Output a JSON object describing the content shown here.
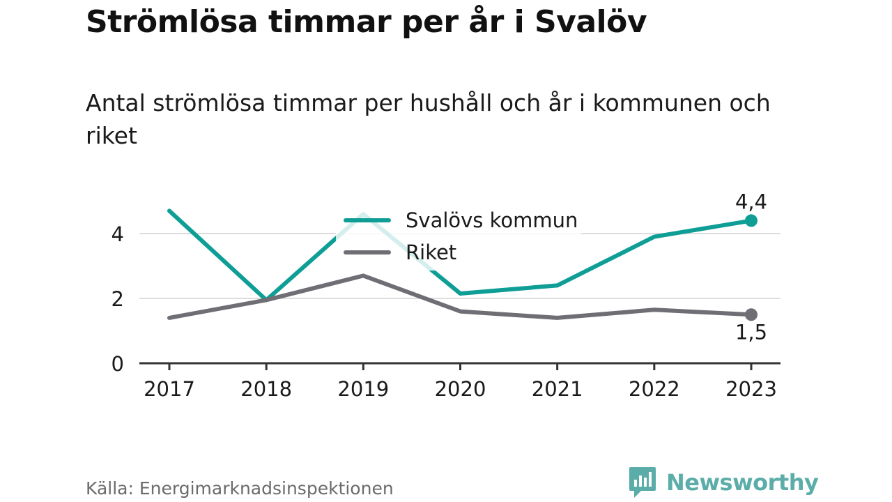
{
  "title": "Strömlösa timmar per år i Svalöv",
  "subtitle": "Antal strömlösa timmar per hushåll och år i kommunen och riket",
  "source": "Källa: Energimarknadsinspektionen",
  "brand": {
    "name": "Newsworthy",
    "icon": "bar-chart-speech-bubble-icon",
    "color": "#5bada9"
  },
  "colors": {
    "text": "#1a1a1a",
    "grid": "#dddddd",
    "axis": "#333333",
    "source": "#6b6b6b"
  },
  "chart_data": {
    "type": "line",
    "x": [
      "2017",
      "2018",
      "2019",
      "2020",
      "2021",
      "2022",
      "2023"
    ],
    "ylim": [
      0,
      5
    ],
    "yticks": [
      "0",
      "2",
      "4"
    ],
    "grid": true,
    "legend_placement": "top-center",
    "series": [
      {
        "name": "Svalövs kommun",
        "color": "#0e9e95",
        "values": [
          4.7,
          1.95,
          4.6,
          2.15,
          2.4,
          3.9,
          4.4
        ],
        "end_label": "4,4"
      },
      {
        "name": "Riket",
        "color": "#6f6e75",
        "values": [
          1.4,
          1.95,
          2.7,
          1.6,
          1.4,
          1.65,
          1.5
        ],
        "end_label": "1,5"
      }
    ]
  }
}
